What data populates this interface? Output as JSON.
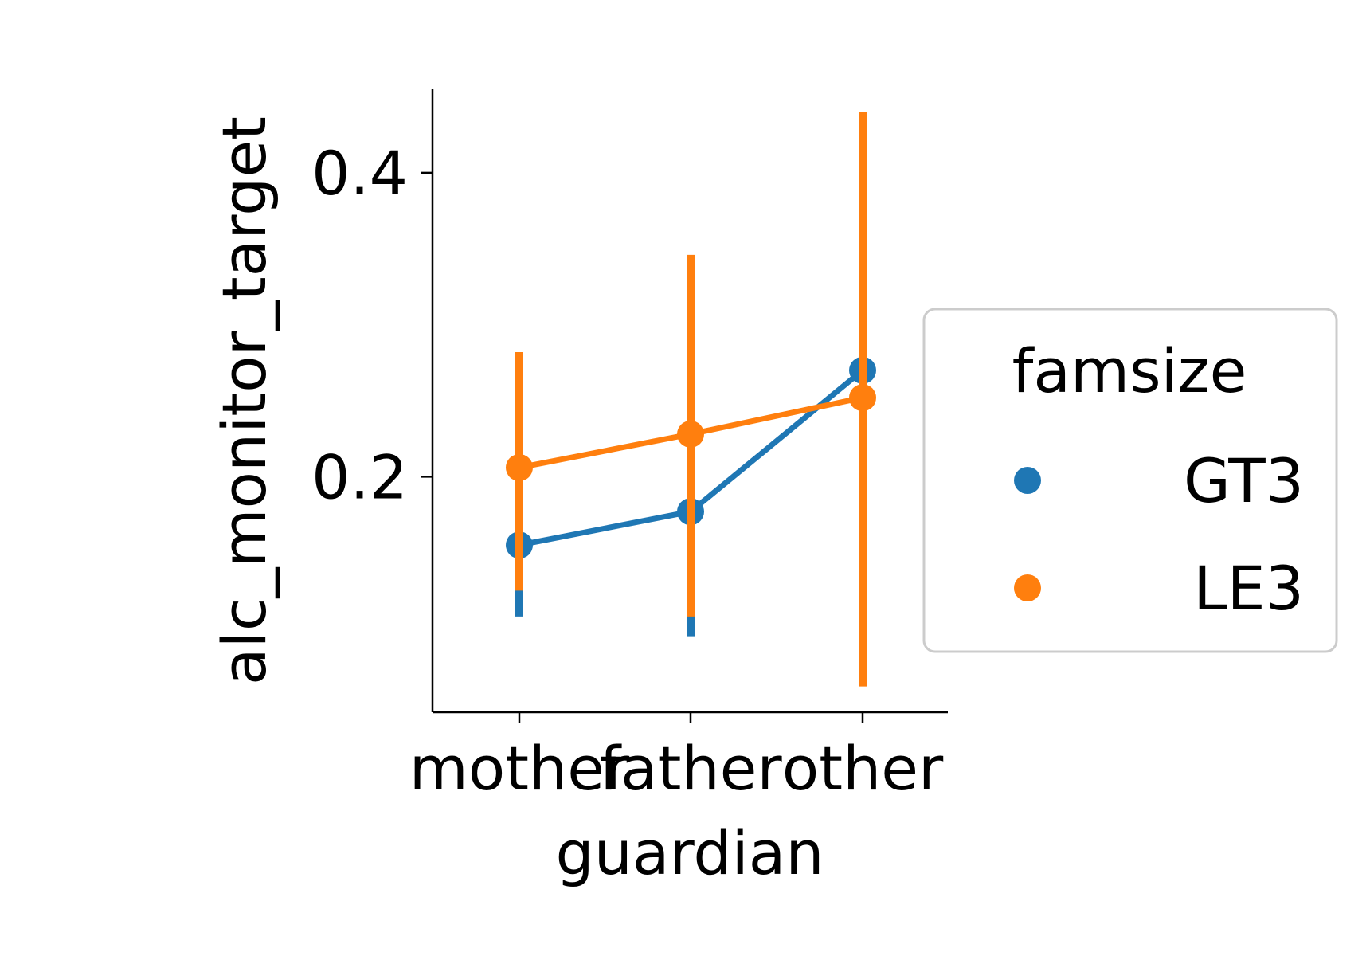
{
  "chart_data": {
    "type": "line",
    "xlabel": "guardian",
    "ylabel": "alc_monitor_target",
    "categories": [
      "mother",
      "father",
      "other"
    ],
    "ylim": [
      0.045,
      0.455
    ],
    "yticks": [
      0.2,
      0.4
    ],
    "ytick_labels": [
      "0.2",
      "0.4"
    ],
    "grid": false,
    "legend": {
      "title": "famsize",
      "placement": "center-right"
    },
    "series": [
      {
        "name": "GT3",
        "color": "#1f77b4",
        "values": [
          0.155,
          0.177,
          0.27
        ],
        "ci_low": [
          0.108,
          0.095,
          0.09
        ],
        "ci_high": [
          0.205,
          0.275,
          0.42
        ]
      },
      {
        "name": "LE3",
        "color": "#ff7f0e",
        "values": [
          0.206,
          0.228,
          0.252
        ],
        "ci_low": [
          0.125,
          0.108,
          0.062
        ],
        "ci_high": [
          0.282,
          0.346,
          0.44
        ]
      }
    ]
  }
}
